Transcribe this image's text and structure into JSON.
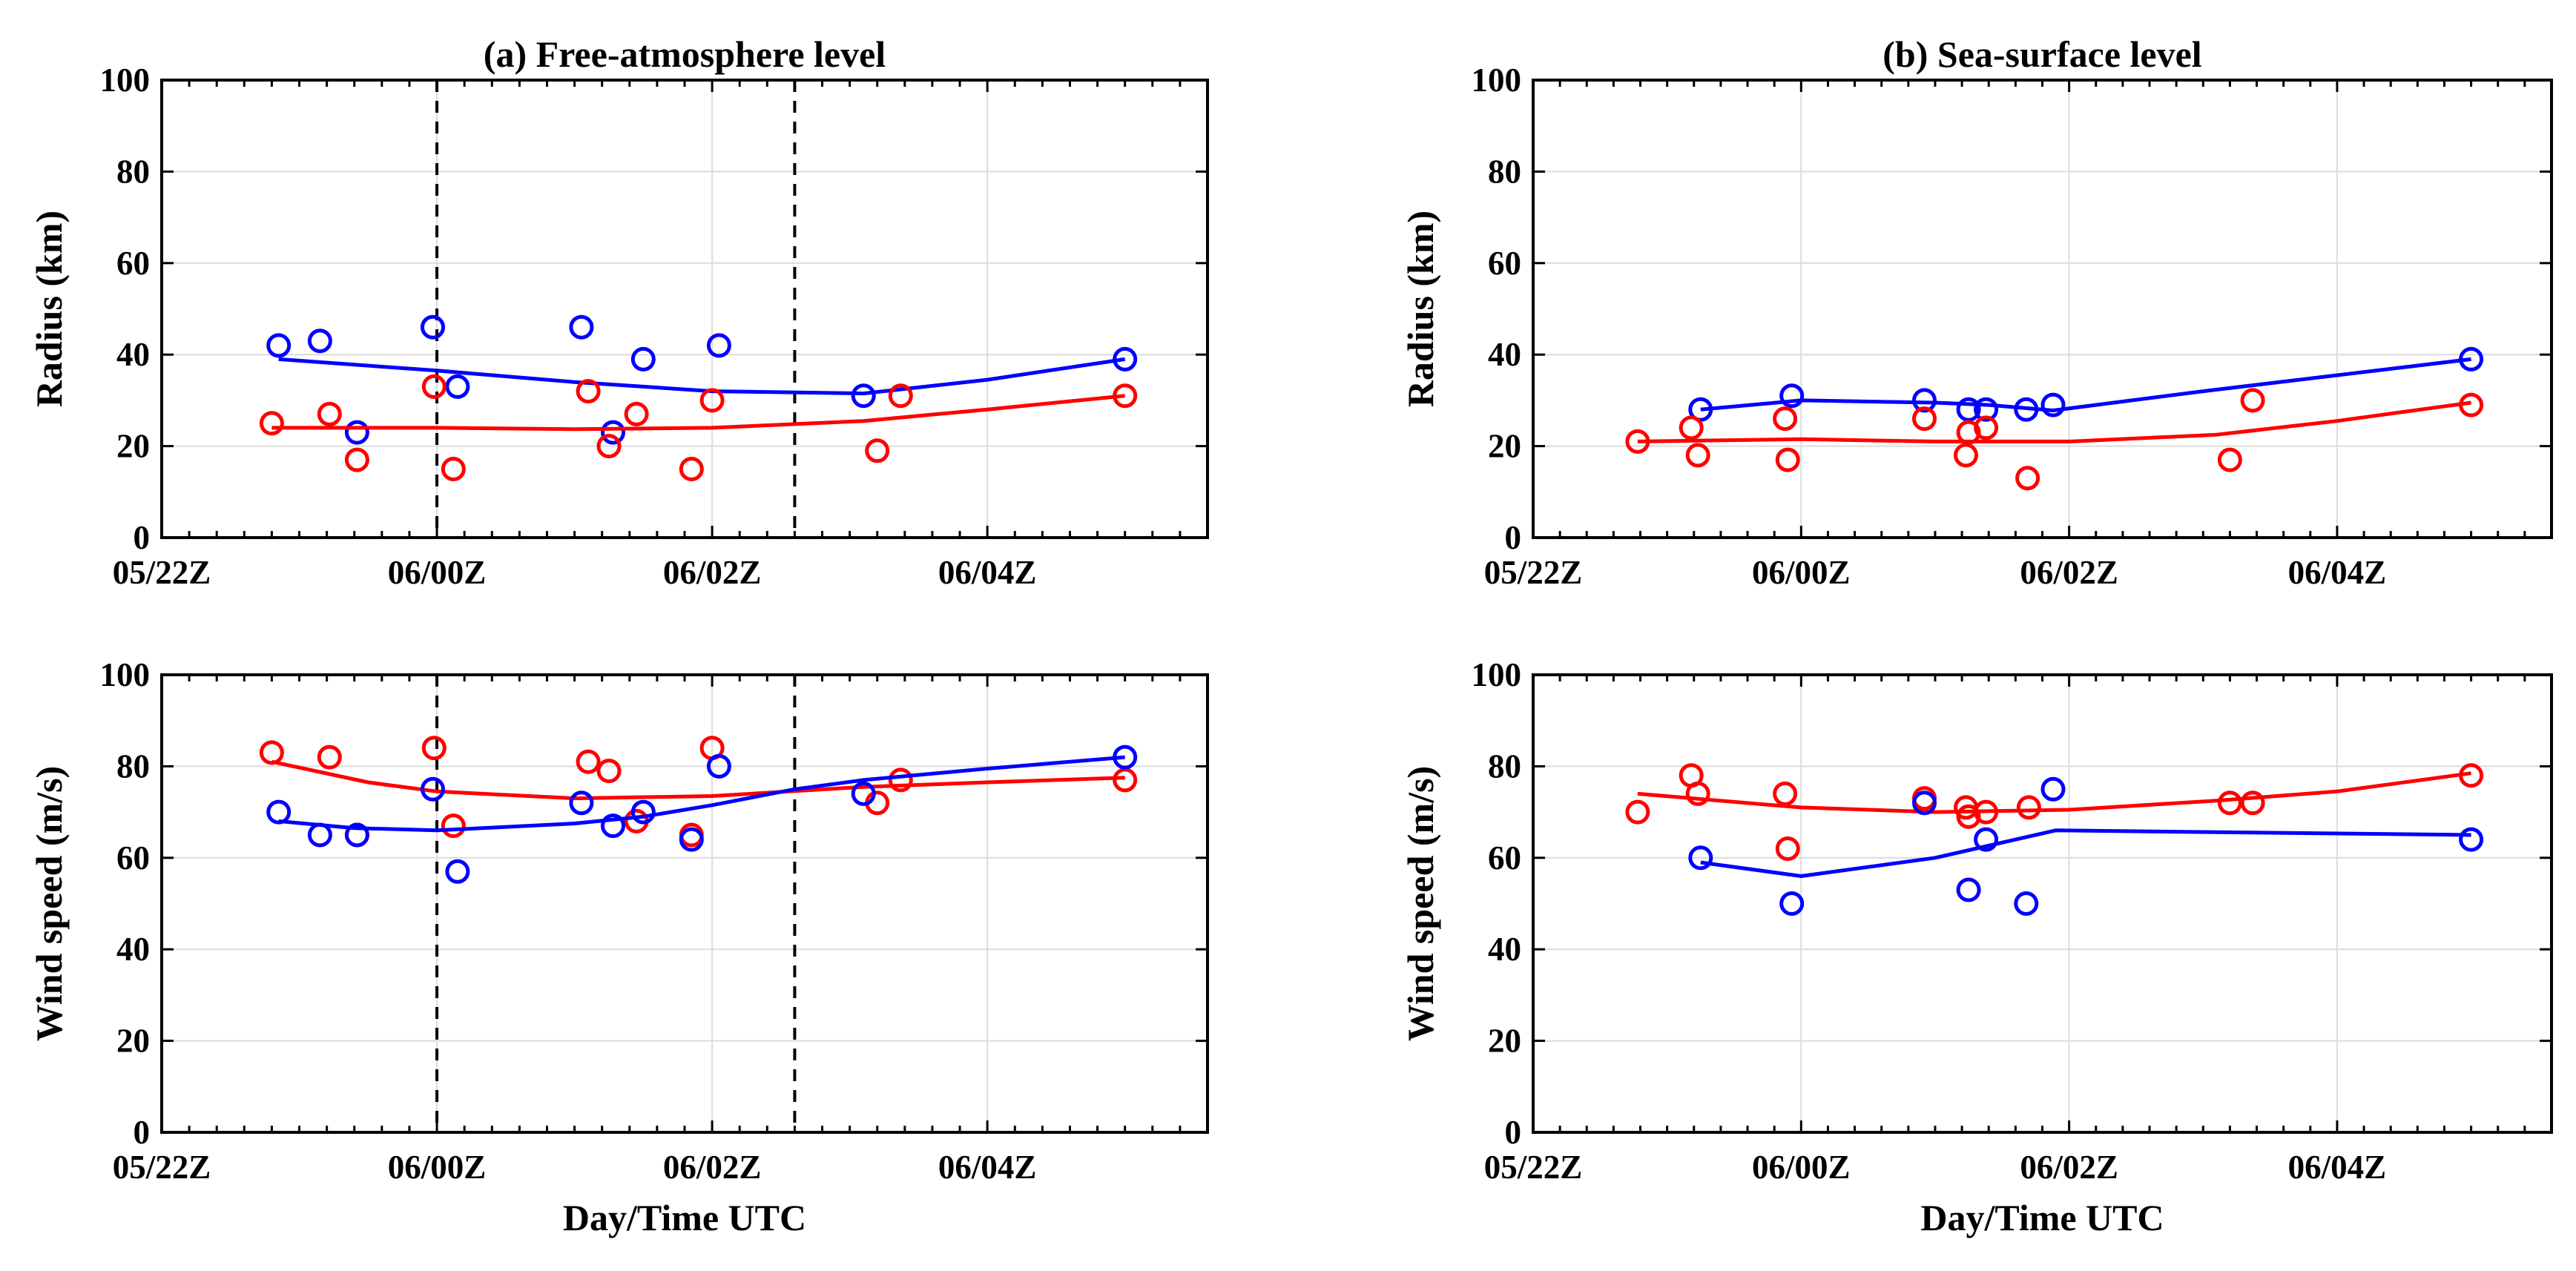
{
  "colors": {
    "series_red": "#ff0000",
    "series_blue": "#0000ff",
    "grid": "#dcdcdc",
    "axis": "#000000"
  },
  "chart_data": [
    {
      "id": "a-radius",
      "type": "scatter+line",
      "title": "(a) Free-atmosphere level",
      "ylabel": "Radius (km)",
      "xlabel": "",
      "x_unit": "hours after 05/22Z",
      "xlim": [
        0,
        76
      ],
      "ylim": [
        0,
        100
      ],
      "xticks": [
        0,
        20,
        40,
        60
      ],
      "xtick_labels": [
        "05/22Z",
        "06/00Z",
        "06/02Z",
        "06/04Z"
      ],
      "yticks": [
        0,
        20,
        40,
        60,
        80,
        100
      ],
      "ytick_labels": [
        "0",
        "20",
        "40",
        "60",
        "80",
        "100"
      ],
      "vlines": [
        20,
        46
      ],
      "series": [
        {
          "name": "blue",
          "color": "#0000ff",
          "points": [
            [
              8.5,
              42
            ],
            [
              11.5,
              43
            ],
            [
              14.2,
              23
            ],
            [
              19.7,
              46
            ],
            [
              21.5,
              33
            ],
            [
              30.5,
              46
            ],
            [
              32.8,
              23
            ],
            [
              35,
              39
            ],
            [
              40.5,
              42
            ],
            [
              51,
              31
            ],
            [
              70,
              39
            ]
          ],
          "line": [
            [
              8.5,
              39
            ],
            [
              20,
              36.5
            ],
            [
              30,
              34
            ],
            [
              40,
              32
            ],
            [
              51,
              31.5
            ],
            [
              60,
              34.5
            ],
            [
              70,
              39
            ]
          ]
        },
        {
          "name": "red",
          "color": "#ff0000",
          "points": [
            [
              8,
              25
            ],
            [
              12.2,
              27
            ],
            [
              14.2,
              17
            ],
            [
              19.8,
              33
            ],
            [
              21.2,
              15
            ],
            [
              31,
              32
            ],
            [
              32.5,
              20
            ],
            [
              34.5,
              27
            ],
            [
              38.5,
              15
            ],
            [
              40,
              30
            ],
            [
              52,
              19
            ],
            [
              53.7,
              31
            ],
            [
              70,
              31
            ]
          ],
          "line": [
            [
              8,
              24
            ],
            [
              20,
              24
            ],
            [
              30,
              23.7
            ],
            [
              40,
              24
            ],
            [
              51,
              25.5
            ],
            [
              60,
              28
            ],
            [
              70,
              31
            ]
          ]
        }
      ]
    },
    {
      "id": "b-radius",
      "type": "scatter+line",
      "title": "(b) Sea-surface level",
      "ylabel": "Radius (km)",
      "xlabel": "",
      "x_unit": "hours after 05/22Z",
      "xlim": [
        0,
        76
      ],
      "ylim": [
        0,
        100
      ],
      "xticks": [
        0,
        20,
        40,
        60
      ],
      "xtick_labels": [
        "05/22Z",
        "06/00Z",
        "06/02Z",
        "06/04Z"
      ],
      "yticks": [
        0,
        20,
        40,
        60,
        80,
        100
      ],
      "ytick_labels": [
        "0",
        "20",
        "40",
        "60",
        "80",
        "100"
      ],
      "vlines": [],
      "series": [
        {
          "name": "blue",
          "color": "#0000ff",
          "points": [
            [
              12.5,
              28
            ],
            [
              19.3,
              31
            ],
            [
              29.2,
              30
            ],
            [
              32.5,
              28
            ],
            [
              33.8,
              28
            ],
            [
              36.8,
              28
            ],
            [
              38.8,
              29
            ],
            [
              70,
              39
            ]
          ],
          "line": [
            [
              12.5,
              28
            ],
            [
              20,
              30
            ],
            [
              30,
              29.5
            ],
            [
              34,
              29
            ],
            [
              38.8,
              27.8
            ],
            [
              50,
              32
            ],
            [
              70,
              39
            ]
          ]
        },
        {
          "name": "red",
          "color": "#ff0000",
          "points": [
            [
              7.8,
              21
            ],
            [
              11.8,
              24
            ],
            [
              12.3,
              18
            ],
            [
              18.8,
              26
            ],
            [
              19,
              17
            ],
            [
              29.2,
              26
            ],
            [
              32.3,
              18
            ],
            [
              32.5,
              23
            ],
            [
              33.8,
              24
            ],
            [
              36.9,
              13
            ],
            [
              52,
              17
            ],
            [
              53.7,
              30
            ],
            [
              70,
              29
            ]
          ],
          "line": [
            [
              7.8,
              21
            ],
            [
              20,
              21.5
            ],
            [
              30,
              21
            ],
            [
              40,
              21
            ],
            [
              51,
              22.5
            ],
            [
              60,
              25.5
            ],
            [
              70,
              29.5
            ]
          ]
        }
      ]
    },
    {
      "id": "a-wind",
      "type": "scatter+line",
      "title": "",
      "ylabel": "Wind speed (m/s)",
      "xlabel": "Day/Time UTC",
      "x_unit": "hours after 05/22Z",
      "xlim": [
        0,
        76
      ],
      "ylim": [
        0,
        100
      ],
      "xticks": [
        0,
        20,
        40,
        60
      ],
      "xtick_labels": [
        "05/22Z",
        "06/00Z",
        "06/02Z",
        "06/04Z"
      ],
      "yticks": [
        0,
        20,
        40,
        60,
        80,
        100
      ],
      "ytick_labels": [
        "0",
        "20",
        "40",
        "60",
        "80",
        "100"
      ],
      "vlines": [
        20,
        46
      ],
      "series": [
        {
          "name": "red",
          "color": "#ff0000",
          "points": [
            [
              8,
              83
            ],
            [
              12.2,
              82
            ],
            [
              14.2,
              65
            ],
            [
              19.8,
              84
            ],
            [
              21.2,
              67
            ],
            [
              31,
              81
            ],
            [
              32.5,
              79
            ],
            [
              34.5,
              68
            ],
            [
              38.5,
              65
            ],
            [
              40,
              84
            ],
            [
              52,
              72
            ],
            [
              53.7,
              77
            ],
            [
              70,
              77
            ]
          ],
          "line": [
            [
              8,
              81
            ],
            [
              15,
              76.5
            ],
            [
              20,
              74.5
            ],
            [
              30,
              73
            ],
            [
              40,
              73.5
            ],
            [
              51,
              75.5
            ],
            [
              60,
              76.5
            ],
            [
              70,
              77.5
            ]
          ]
        },
        {
          "name": "blue",
          "color": "#0000ff",
          "points": [
            [
              8.5,
              70
            ],
            [
              11.5,
              65
            ],
            [
              14.2,
              65
            ],
            [
              19.7,
              75
            ],
            [
              21.5,
              57
            ],
            [
              30.5,
              72
            ],
            [
              32.8,
              67
            ],
            [
              35,
              70
            ],
            [
              38.5,
              64
            ],
            [
              40.5,
              80
            ],
            [
              51,
              74
            ],
            [
              70,
              82
            ]
          ],
          "line": [
            [
              8.5,
              68
            ],
            [
              14,
              66.5
            ],
            [
              20,
              66
            ],
            [
              30,
              67.5
            ],
            [
              35,
              69
            ],
            [
              40,
              71.5
            ],
            [
              46,
              75
            ],
            [
              51,
              77
            ],
            [
              60,
              79.5
            ],
            [
              70,
              82
            ]
          ]
        }
      ]
    },
    {
      "id": "b-wind",
      "type": "scatter+line",
      "title": "",
      "ylabel": "Wind speed (m/s)",
      "xlabel": "Day/Time UTC",
      "x_unit": "hours after 05/22Z",
      "xlim": [
        0,
        76
      ],
      "ylim": [
        0,
        100
      ],
      "xticks": [
        0,
        20,
        40,
        60
      ],
      "xtick_labels": [
        "05/22Z",
        "06/00Z",
        "06/02Z",
        "06/04Z"
      ],
      "yticks": [
        0,
        20,
        40,
        60,
        80,
        100
      ],
      "ytick_labels": [
        "0",
        "20",
        "40",
        "60",
        "80",
        "100"
      ],
      "vlines": [],
      "series": [
        {
          "name": "red",
          "color": "#ff0000",
          "points": [
            [
              7.8,
              70
            ],
            [
              11.8,
              78
            ],
            [
              12.3,
              74
            ],
            [
              18.8,
              74
            ],
            [
              19,
              62
            ],
            [
              29.2,
              73
            ],
            [
              32.3,
              71
            ],
            [
              32.5,
              69
            ],
            [
              33.8,
              70
            ],
            [
              37,
              71
            ],
            [
              52,
              72
            ],
            [
              53.7,
              72
            ],
            [
              70,
              78
            ]
          ],
          "line": [
            [
              7.8,
              74
            ],
            [
              20,
              71
            ],
            [
              30,
              70
            ],
            [
              40,
              70.5
            ],
            [
              51,
              72.5
            ],
            [
              60,
              74.5
            ],
            [
              70,
              78.5
            ]
          ]
        },
        {
          "name": "blue",
          "color": "#0000ff",
          "points": [
            [
              12.5,
              60
            ],
            [
              19.3,
              50
            ],
            [
              29.2,
              72
            ],
            [
              32.5,
              53
            ],
            [
              33.8,
              64
            ],
            [
              36.8,
              50
            ],
            [
              38.8,
              75
            ],
            [
              70,
              64
            ]
          ],
          "line": [
            [
              12.5,
              59
            ],
            [
              20,
              56
            ],
            [
              30,
              60
            ],
            [
              39,
              66
            ],
            [
              70,
              65
            ]
          ]
        }
      ]
    }
  ]
}
